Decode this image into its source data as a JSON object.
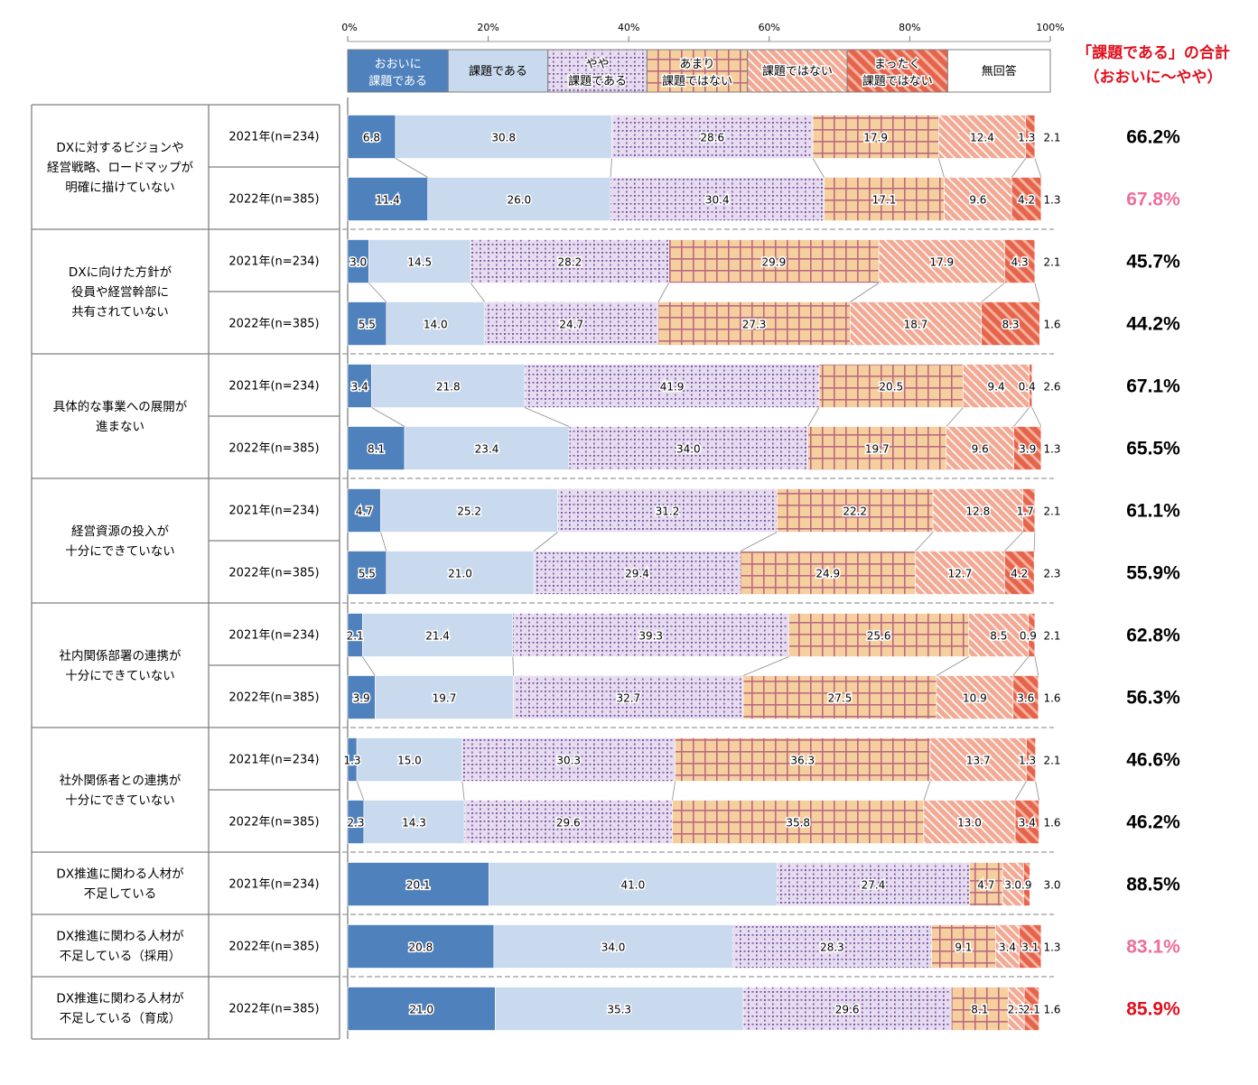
{
  "chart_data": {
    "type": "bar",
    "orientation": "horizontal",
    "stacked": true,
    "unit": "%",
    "xlim": [
      0,
      100
    ],
    "x_ticks": [
      "0%",
      "20%",
      "40%",
      "60%",
      "80%",
      "100%"
    ],
    "legend_position": "top",
    "legend": [
      {
        "key": "s0",
        "label": [
          "おおいに",
          "課題である"
        ]
      },
      {
        "key": "s1",
        "label": [
          "課題である"
        ]
      },
      {
        "key": "s2",
        "label": [
          "やや",
          "課題である"
        ]
      },
      {
        "key": "s3",
        "label": [
          "あまり",
          "課題ではない"
        ]
      },
      {
        "key": "s4",
        "label": [
          "課題ではない"
        ]
      },
      {
        "key": "s5",
        "label": [
          "まったく",
          "課題ではない"
        ]
      },
      {
        "key": "s6",
        "label": [
          "無回答"
        ]
      }
    ],
    "totals_title": [
      "「課題である」の合計",
      "（おおいに～やや）"
    ],
    "groups": [
      {
        "category": [
          "DXに対するビジョンや",
          "経営戦略、ロードマップが",
          "明確に描けていない"
        ],
        "rows": [
          {
            "year": "2021年(n=234)",
            "values": [
              6.8,
              30.8,
              28.6,
              17.9,
              12.4,
              1.3,
              2.1
            ],
            "total": "66.2%",
            "total_color": "black"
          },
          {
            "year": "2022年(n=385)",
            "values": [
              11.4,
              26.0,
              30.4,
              17.1,
              9.6,
              4.2,
              1.3
            ],
            "total": "67.8%",
            "total_color": "pink"
          }
        ]
      },
      {
        "category": [
          "DXに向けた方針が",
          "役員や経営幹部に",
          "共有されていない"
        ],
        "rows": [
          {
            "year": "2021年(n=234)",
            "values": [
              3.0,
              14.5,
              28.2,
              29.9,
              17.9,
              4.3,
              2.1
            ],
            "total": "45.7%",
            "total_color": "black"
          },
          {
            "year": "2022年(n=385)",
            "values": [
              5.5,
              14.0,
              24.7,
              27.3,
              18.7,
              8.3,
              1.6
            ],
            "total": "44.2%",
            "total_color": "black"
          }
        ]
      },
      {
        "category": [
          "具体的な事業への展開が",
          "進まない"
        ],
        "rows": [
          {
            "year": "2021年(n=234)",
            "values": [
              3.4,
              21.8,
              41.9,
              20.5,
              9.4,
              0.4,
              2.6
            ],
            "total": "67.1%",
            "total_color": "black"
          },
          {
            "year": "2022年(n=385)",
            "values": [
              8.1,
              23.4,
              34.0,
              19.7,
              9.6,
              3.9,
              1.3
            ],
            "total": "65.5%",
            "total_color": "black"
          }
        ]
      },
      {
        "category": [
          "経営資源の投入が",
          "十分にできていない"
        ],
        "rows": [
          {
            "year": "2021年(n=234)",
            "values": [
              4.7,
              25.2,
              31.2,
              22.2,
              12.8,
              1.7,
              2.1
            ],
            "total": "61.1%",
            "total_color": "black"
          },
          {
            "year": "2022年(n=385)",
            "values": [
              5.5,
              21.0,
              29.4,
              24.9,
              12.7,
              4.2,
              2.3
            ],
            "total": "55.9%",
            "total_color": "black"
          }
        ]
      },
      {
        "category": [
          "社内関係部署の連携が",
          "十分にできていない"
        ],
        "rows": [
          {
            "year": "2021年(n=234)",
            "values": [
              2.1,
              21.4,
              39.3,
              25.6,
              8.5,
              0.9,
              2.1
            ],
            "total": "62.8%",
            "total_color": "black"
          },
          {
            "year": "2022年(n=385)",
            "values": [
              3.9,
              19.7,
              32.7,
              27.5,
              10.9,
              3.6,
              1.6
            ],
            "total": "56.3%",
            "total_color": "black"
          }
        ]
      },
      {
        "category": [
          "社外関係者との連携が",
          "十分にできていない"
        ],
        "rows": [
          {
            "year": "2021年(n=234)",
            "values": [
              1.3,
              15.0,
              30.3,
              36.3,
              13.7,
              1.3,
              2.1
            ],
            "total": "46.6%",
            "total_color": "black"
          },
          {
            "year": "2022年(n=385)",
            "values": [
              2.3,
              14.3,
              29.6,
              35.8,
              13.0,
              3.4,
              1.6
            ],
            "total": "46.2%",
            "total_color": "black"
          }
        ]
      },
      {
        "category": [
          "DX推進に関わる人材が",
          "不足している"
        ],
        "rows": [
          {
            "year": "2021年(n=234)",
            "values": [
              20.1,
              41.0,
              27.4,
              4.7,
              3.0,
              0.9,
              3.0
            ],
            "total": "88.5%",
            "total_color": "black"
          }
        ]
      },
      {
        "category": [
          "DX推進に関わる人材が",
          "不足している（採用）"
        ],
        "rows": [
          {
            "year": "2022年(n=385)",
            "values": [
              20.8,
              34.0,
              28.3,
              9.1,
              3.4,
              3.1,
              1.3
            ],
            "total": "83.1%",
            "total_color": "pink"
          }
        ]
      },
      {
        "category": [
          "DX推進に関わる人材が",
          "不足している（育成）"
        ],
        "rows": [
          {
            "year": "2022年(n=385)",
            "values": [
              21.0,
              35.3,
              29.6,
              8.1,
              2.3,
              2.1,
              1.6
            ],
            "total": "85.9%",
            "total_color": "red"
          }
        ]
      }
    ]
  },
  "colors": {
    "s0": "#4f81bd",
    "s1": "#c9d9ee",
    "s2_bg": "#e6dcef",
    "s2_dot": "#7b52a3",
    "s3_bg": "#f6cf9e",
    "s3_line": "#b96b82",
    "s4_bg": "#f3aa95",
    "s4_stripe": "#ffffff",
    "s5_bg": "#e6644c",
    "s5_stripe": "#f4b39f",
    "s6": "#ffffff",
    "total_black": "#000000",
    "total_pink": "#ee6e9c",
    "total_red": "#e0101e",
    "title_red": "#e0101e"
  }
}
